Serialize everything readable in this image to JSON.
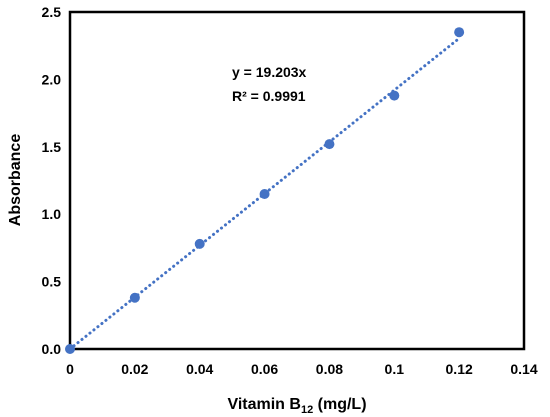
{
  "chart_data": {
    "type": "scatter",
    "xlabel": "Vitamin B",
    "xlabel_subscript": "12",
    "xlabel_suffix": " (mg/L)",
    "ylabel": "Absorbance",
    "xlim": [
      0,
      0.14
    ],
    "ylim": [
      0,
      2.5
    ],
    "xticks": [
      "0",
      "0.02",
      "0.04",
      "0.06",
      "0.08",
      "0.1",
      "0.12",
      "0.14"
    ],
    "yticks": [
      "0.0",
      "0.5",
      "1.0",
      "1.5",
      "2.0",
      "2.5"
    ],
    "grid": false,
    "series": [
      {
        "x": [
          0,
          0.02,
          0.04,
          0.06,
          0.08,
          0.1,
          0.12
        ],
        "y": [
          0.0,
          0.38,
          0.78,
          1.15,
          1.52,
          1.88,
          2.35
        ],
        "color": "#4472C4"
      }
    ],
    "trendline": {
      "slope": 19.203,
      "x_range": [
        0,
        0.12
      ],
      "style": "dotted",
      "color": "#4472C4"
    },
    "annotations": {
      "equation": "y = 19.203x",
      "r_squared": "R² = 0.9991"
    }
  }
}
